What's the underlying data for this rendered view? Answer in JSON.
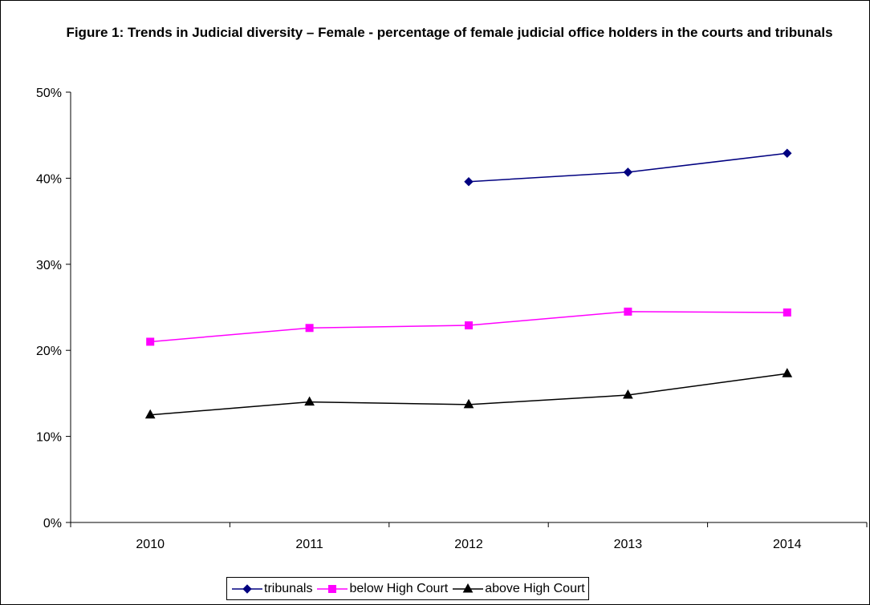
{
  "chart_data": {
    "type": "line",
    "title": "Figure 1: Trends in Judicial diversity – Female - percentage of female judicial office holders in the courts and tribunals",
    "categories": [
      "2010",
      "2011",
      "2012",
      "2013",
      "2014"
    ],
    "ylim": [
      0,
      50
    ],
    "yticks": [
      "0%",
      "10%",
      "20%",
      "30%",
      "40%",
      "50%"
    ],
    "grid": false,
    "legend_position": "bottom",
    "series": [
      {
        "name": "tribunals",
        "color": "#000080",
        "marker": "diamond",
        "values": [
          null,
          null,
          39.6,
          40.7,
          42.9
        ]
      },
      {
        "name": "below High Court",
        "color": "#ff00ff",
        "marker": "square",
        "values": [
          21.0,
          22.6,
          22.9,
          24.5,
          24.4
        ]
      },
      {
        "name": "above High Court",
        "color": "#000000",
        "marker": "triangle",
        "values": [
          12.5,
          14.0,
          13.7,
          14.8,
          17.3
        ]
      }
    ]
  }
}
